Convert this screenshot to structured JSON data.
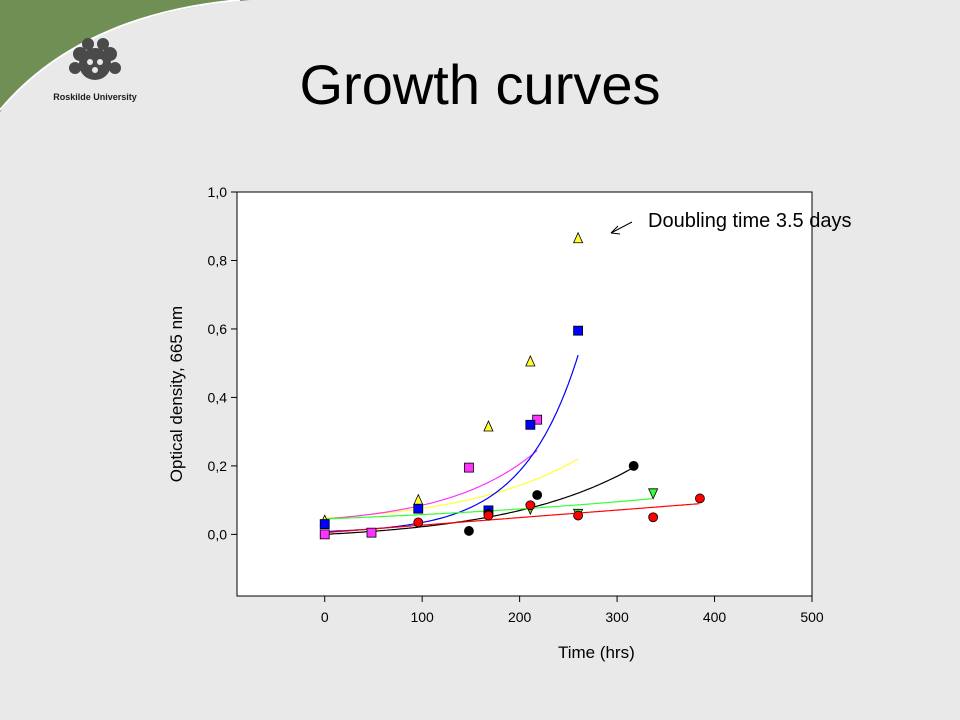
{
  "slide": {
    "title": "Growth curves",
    "logo_text": "Roskilde University",
    "accent_color": "#6f8f55",
    "annotation": "Doubling time 3.5 days"
  },
  "chart_data": {
    "type": "scatter",
    "title": "",
    "xlabel": "Time (hrs)",
    "ylabel": "Optical density, 665 nm",
    "xlim": [
      -90,
      500
    ],
    "ylim": [
      -0.18,
      1.0
    ],
    "x_ticks": [
      0,
      100,
      200,
      300,
      400,
      500
    ],
    "x_tick_labels": [
      "0",
      "100",
      "200",
      "300",
      "400",
      "500"
    ],
    "y_ticks": [
      0.0,
      0.2,
      0.4,
      0.6,
      0.8,
      1.0
    ],
    "y_tick_labels": [
      "0,0",
      "0,2",
      "0,4",
      "0,6",
      "0,8",
      "1,0"
    ],
    "grid": false,
    "series": [
      {
        "color": "#ffff33",
        "marker": "triangle-up",
        "x": [
          0,
          96,
          168,
          211,
          260
        ],
        "y": [
          0.04,
          0.1,
          0.315,
          0.505,
          0.865
        ],
        "fit": {
          "a": 0.022,
          "b": 0.0084,
          "c": 0.025,
          "xmin": 0,
          "xmax": 260
        }
      },
      {
        "color": "#ff33ff",
        "marker": "square",
        "x": [
          0,
          48,
          148,
          218
        ],
        "y": [
          0.0,
          0.005,
          0.195,
          0.335
        ],
        "fit": {
          "a": 0.02,
          "b": 0.011,
          "c": 0.025,
          "xmin": 0,
          "xmax": 218
        }
      },
      {
        "color": "#0000ff",
        "marker": "square",
        "x": [
          0,
          96,
          168,
          211,
          260
        ],
        "y": [
          0.03,
          0.075,
          0.07,
          0.32,
          0.595
        ],
        "fit": {
          "a": 0.0055,
          "b": 0.0175,
          "c": 0.003,
          "xmin": 0,
          "xmax": 260
        }
      },
      {
        "color": "#000000",
        "marker": "circle",
        "x": [
          148,
          168,
          218,
          317
        ],
        "y": [
          0.01,
          0.06,
          0.115,
          0.2
        ],
        "fit": {
          "a": 0.02,
          "b": 0.0075,
          "c": -0.02,
          "xmin": 0,
          "xmax": 317
        }
      },
      {
        "color": "#33ff33",
        "marker": "triangle-down",
        "x": [
          211,
          260,
          337
        ],
        "y": [
          0.075,
          0.06,
          0.12
        ],
        "fit": {
          "a": 0.045,
          "b": 0.0025,
          "c": 0.0,
          "xmin": 0,
          "xmax": 337
        }
      },
      {
        "color": "#ff0000",
        "marker": "circle",
        "x": [
          96,
          168,
          211,
          260,
          337,
          385
        ],
        "y": [
          0.035,
          0.055,
          0.085,
          0.055,
          0.05,
          0.105
        ],
        "fit": {
          "a": 0.0,
          "b": 0.00022,
          "c": 0.005,
          "linear": true,
          "xmin": 0,
          "xmax": 385
        }
      }
    ]
  }
}
